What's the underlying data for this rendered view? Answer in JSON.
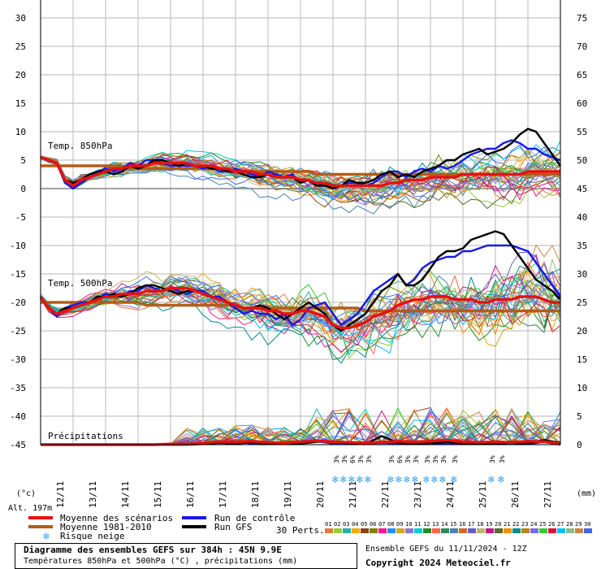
{
  "chart_data": {
    "type": "line",
    "left_axis_ticks": [
      "30",
      "25",
      "20",
      "15",
      "10",
      "5",
      "0",
      "-5",
      "-10",
      "-15",
      "-20",
      "-25",
      "-30",
      "-35",
      "-40",
      "-45"
    ],
    "right_axis_ticks": [
      "75",
      "70",
      "65",
      "60",
      "55",
      "50",
      "45",
      "40",
      "35",
      "30",
      "25",
      "20",
      "15",
      "10",
      "5",
      "0"
    ],
    "left_unit": "(°c)",
    "right_unit": "(mm)",
    "altitude": "Alt. 197m",
    "x_ticks": [
      "12/11",
      "13/11",
      "14/11",
      "15/11",
      "16/11",
      "17/11",
      "18/11",
      "19/11",
      "20/11",
      "21/11",
      "22/11",
      "23/11",
      "24/11",
      "25/11",
      "26/11",
      "27/11"
    ],
    "panel_labels": {
      "t850": "Temp. 850hPa",
      "t500": "Temp. 500hPa",
      "precip": "Précipitations"
    },
    "t850": {
      "x": [
        0,
        0.25,
        0.5,
        0.75,
        1,
        1.25,
        1.5,
        1.75,
        2,
        2.25,
        2.5,
        2.75,
        3,
        3.25,
        3.5,
        3.75,
        4,
        4.25,
        4.5,
        4.75,
        5,
        5.25,
        5.5,
        5.75,
        6,
        6.25,
        6.5,
        6.75,
        7,
        7.25,
        7.5,
        7.75,
        8,
        8.25,
        8.5,
        8.75,
        9,
        9.25,
        9.5,
        9.75,
        10,
        10.25,
        10.5,
        10.75,
        11,
        11.25,
        11.5,
        11.75,
        12,
        12.25,
        12.5,
        12.75,
        13,
        13.25,
        13.5,
        13.75,
        14,
        14.25,
        14.5,
        14.75,
        15,
        15.25,
        15.5,
        15.75,
        16
      ],
      "mean": [
        5.5,
        5,
        4.5,
        1.5,
        0.5,
        1.5,
        2,
        2.5,
        3,
        3.5,
        3.5,
        4,
        4,
        4,
        4.5,
        4.5,
        4.5,
        4.5,
        4.5,
        4,
        4,
        4,
        3.5,
        3.5,
        3,
        3,
        3,
        2.5,
        2.5,
        2,
        2,
        2,
        1.5,
        1.5,
        1,
        1,
        0.5,
        0.5,
        0.5,
        0.5,
        0.5,
        0.5,
        0.5,
        1,
        1,
        1.5,
        1.5,
        1.5,
        2,
        2,
        2,
        2,
        2.5,
        2.5,
        2.5,
        2.5,
        2.5,
        2.5,
        2.5,
        2.5,
        3,
        3,
        3,
        3,
        3
      ],
      "climo": [
        4,
        4,
        4,
        4,
        4,
        4,
        4,
        4,
        4,
        4,
        4,
        3.5,
        3.5,
        3.5,
        3.5,
        3.5,
        3.5,
        3.5,
        3.5,
        3.5,
        3.5,
        3.5,
        3.5,
        3,
        3,
        3,
        3,
        3,
        3,
        3,
        3,
        3,
        3,
        3,
        2.5,
        2.5,
        2.5,
        2.5,
        2.5,
        2.5,
        2.5,
        2.5,
        2.5,
        2.5,
        2.5,
        2.5,
        2.5,
        2.5,
        2.5,
        2.5,
        2.5,
        2.5,
        2.5,
        2.5,
        2.5,
        2.5,
        2.5,
        2.5,
        2.5,
        2.5,
        2.5,
        2.5,
        2.5,
        2.5,
        2.5
      ],
      "control": [
        5.5,
        5,
        4.5,
        1,
        0,
        1,
        2,
        3,
        3.5,
        3,
        3.5,
        4.5,
        4,
        5,
        5,
        4.5,
        4,
        4,
        4,
        4,
        3.5,
        4,
        3,
        3,
        3.5,
        3,
        2.5,
        2,
        3,
        2.5,
        2,
        2.5,
        1,
        1.5,
        0.5,
        1,
        0,
        0.5,
        1,
        1,
        0.5,
        1,
        2,
        3,
        3,
        2,
        3,
        3.5,
        3,
        4,
        3.5,
        4,
        5,
        6,
        6.5,
        7,
        7,
        8,
        8.5,
        8,
        7,
        7,
        6,
        5.5,
        5
      ],
      "gfs": [
        5.5,
        5,
        4.5,
        1.5,
        1,
        1.5,
        2.5,
        3,
        3,
        2.5,
        3,
        4,
        3.5,
        4,
        5,
        5,
        4.5,
        4,
        4.5,
        4,
        4,
        3.5,
        3.5,
        3,
        3,
        2.5,
        2,
        2,
        2.5,
        2,
        2,
        2,
        1,
        1.5,
        0.5,
        0.5,
        0,
        0.5,
        1.5,
        1,
        1,
        1.5,
        2.5,
        3,
        2,
        2.5,
        2,
        3,
        3.5,
        4,
        5,
        5,
        6,
        6.5,
        7,
        6,
        6.5,
        7,
        8,
        9.5,
        10.5,
        10,
        8,
        6,
        4
      ]
    },
    "t500": {
      "x": [
        0,
        0.25,
        0.5,
        0.75,
        1,
        1.25,
        1.5,
        1.75,
        2,
        2.25,
        2.5,
        2.75,
        3,
        3.25,
        3.5,
        3.75,
        4,
        4.25,
        4.5,
        4.75,
        5,
        5.25,
        5.5,
        5.75,
        6,
        6.25,
        6.5,
        6.75,
        7,
        7.25,
        7.5,
        7.75,
        8,
        8.25,
        8.5,
        8.75,
        9,
        9.25,
        9.5,
        9.75,
        10,
        10.25,
        10.5,
        10.75,
        11,
        11.25,
        11.5,
        11.75,
        12,
        12.25,
        12.5,
        12.75,
        13,
        13.25,
        13.5,
        13.75,
        14,
        14.25,
        14.5,
        14.75,
        15,
        15.25,
        15.5,
        15.75,
        16
      ],
      "mean": [
        -19,
        -21,
        -22,
        -21.5,
        -21,
        -20.5,
        -20,
        -19.5,
        -19,
        -19,
        -18.5,
        -18.5,
        -18.5,
        -18,
        -18,
        -18,
        -17.5,
        -17.5,
        -17.5,
        -18,
        -18.5,
        -19,
        -19.5,
        -20,
        -20.5,
        -21,
        -21,
        -21,
        -21.5,
        -21.5,
        -22,
        -22,
        -21.5,
        -21.5,
        -22,
        -22.5,
        -24,
        -24.5,
        -24.5,
        -24,
        -23.5,
        -22.5,
        -22,
        -21.5,
        -20.5,
        -20,
        -19.5,
        -19.5,
        -19,
        -19,
        -19,
        -19.5,
        -19.5,
        -19.5,
        -20,
        -20,
        -19.5,
        -19.5,
        -19.5,
        -19,
        -19,
        -19,
        -19.5,
        -20,
        -20
      ],
      "climo": [
        -20,
        -20,
        -20,
        -20,
        -20,
        -20,
        -20,
        -20,
        -20,
        -20,
        -20,
        -20,
        -20,
        -20.5,
        -20.5,
        -20.5,
        -20.5,
        -20.5,
        -20.5,
        -20.5,
        -20.5,
        -20.5,
        -20.5,
        -20.5,
        -20.5,
        -21,
        -21,
        -21,
        -21,
        -21,
        -21,
        -21,
        -21,
        -21,
        -21,
        -21,
        -21,
        -21,
        -21,
        -21,
        -21.5,
        -21.5,
        -21.5,
        -21.5,
        -21.5,
        -21.5,
        -21.5,
        -21.5,
        -21.5,
        -21.5,
        -21.5,
        -21.5,
        -21.5,
        -21.5,
        -21.5,
        -21.5,
        -21.5,
        -21.5,
        -21.5,
        -21.5,
        -21.5,
        -21.5,
        -21.5,
        -21.5,
        -21.5
      ],
      "control": [
        -19,
        -21,
        -22.5,
        -21,
        -20.5,
        -20,
        -20,
        -19.5,
        -18.5,
        -19,
        -19,
        -18,
        -18,
        -17,
        -17.5,
        -18,
        -17.5,
        -18,
        -18.5,
        -18,
        -18,
        -19,
        -19,
        -20,
        -21,
        -22,
        -21.5,
        -22,
        -22,
        -23,
        -22,
        -24,
        -23,
        -21,
        -20.5,
        -20,
        -22,
        -24,
        -23,
        -22,
        -20,
        -18,
        -17,
        -16,
        -15,
        -17,
        -16,
        -14,
        -13,
        -12.5,
        -12,
        -12,
        -11,
        -11,
        -10.5,
        -10,
        -10,
        -10,
        -10,
        -10.5,
        -11,
        -13,
        -15,
        -17,
        -19
      ],
      "gfs": [
        -19,
        -21,
        -22,
        -21,
        -21,
        -20.5,
        -20,
        -19,
        -19,
        -18.5,
        -19,
        -18.5,
        -17.5,
        -17,
        -17,
        -17.5,
        -18,
        -18.5,
        -18,
        -18,
        -18.5,
        -19,
        -19.5,
        -20,
        -20.5,
        -21,
        -21,
        -20.5,
        -21,
        -22,
        -23,
        -22,
        -21,
        -20,
        -21,
        -22,
        -24,
        -25,
        -24,
        -23,
        -22,
        -20,
        -18,
        -17,
        -15,
        -17,
        -17,
        -16,
        -14,
        -12,
        -11,
        -11,
        -10.5,
        -9,
        -8.5,
        -8,
        -7.5,
        -8,
        -10,
        -12,
        -14,
        -16,
        -17,
        -18,
        -19.5
      ]
    },
    "precip": {
      "x": [
        0,
        0.5,
        1,
        1.5,
        2,
        2.5,
        3,
        3.5,
        4,
        4.5,
        5,
        5.5,
        6,
        6.5,
        7,
        7.5,
        8,
        8.5,
        9,
        9.5,
        10,
        10.5,
        11,
        11.5,
        12,
        12.5,
        13,
        13.5,
        14,
        14.5,
        15,
        15.5,
        16
      ],
      "mean": [
        0,
        0,
        0,
        0,
        0,
        0,
        0,
        0,
        0.1,
        0.1,
        0.3,
        0.5,
        0.5,
        0.6,
        0.4,
        0.3,
        0.5,
        0.7,
        0.5,
        0.4,
        0.3,
        0.4,
        0.6,
        0.5,
        0.6,
        0.8,
        0.5,
        0.4,
        0.5,
        0.4,
        0.6,
        0.5,
        0.2
      ],
      "control": [
        0,
        0,
        0,
        0,
        0,
        0,
        0,
        0,
        0,
        0,
        0.2,
        0.3,
        0.6,
        0.2,
        0.3,
        0.2,
        0.3,
        0.6,
        0.2,
        0.1,
        0.2,
        0.3,
        0.2,
        0.3,
        0.2,
        0.1,
        0.2,
        0.1,
        0.2,
        0.3,
        0.1,
        0.5,
        0
      ],
      "gfs": [
        0,
        0,
        0,
        0,
        0,
        0,
        0,
        0,
        0,
        0,
        0.1,
        0.3,
        0.2,
        0.4,
        0.1,
        0.3,
        0.2,
        0.5,
        0.6,
        0.2,
        0.1,
        1.5,
        0.3,
        0.1,
        0.2,
        0.5,
        0.2,
        0.1,
        0.2,
        0.3,
        0.2,
        0.8,
        0.3
      ],
      "snow_columns": [
        9.1,
        9.35,
        9.6,
        9.85,
        10.1,
        10.8,
        11.05,
        11.3,
        11.55,
        11.9,
        12.15,
        12.4,
        12.75,
        13.9,
        14.2
      ],
      "snow_labels": [
        "3%",
        "3%",
        "6%",
        "3%",
        "3%",
        "3%",
        "6%",
        "3%",
        "3%",
        "3%",
        "3%",
        "3%",
        "3%",
        "3%",
        "3%"
      ]
    },
    "ensemble_note": "30 Perts."
  },
  "legend": {
    "mean_label": "Moyenne des scénarios",
    "climo_label": "Moyenne 1981-2010",
    "snow_label": "Risque neige",
    "control_label": "Run de contrôle",
    "gfs_label": "Run GFS",
    "perts_label": "30 Perts.",
    "members": [
      "01",
      "02",
      "03",
      "04",
      "05",
      "06",
      "07",
      "08",
      "09",
      "10",
      "11",
      "12",
      "13",
      "14",
      "15",
      "16",
      "17",
      "18",
      "19",
      "20",
      "21",
      "22",
      "23",
      "24",
      "25",
      "26",
      "27",
      "28",
      "29",
      "30"
    ],
    "member_colors": [
      "#e07b39",
      "#9acd32",
      "#20b2aa",
      "#ffa500",
      "#8b4513",
      "#808000",
      "#ff1493",
      "#1e90ff",
      "#daa520",
      "#9370db",
      "#00ced1",
      "#228b22",
      "#ff6347",
      "#2e8b57",
      "#4682b4",
      "#d2691e",
      "#6a5acd",
      "#bdb76b",
      "#c71585",
      "#556b2f",
      "#ff8c00",
      "#008b8b",
      "#b8860b",
      "#7b68ee",
      "#32cd32",
      "#dc143c",
      "#00bfff",
      "#8fbc8f",
      "#cd853f",
      "#4169e1"
    ]
  },
  "colors": {
    "mean": "#e8100e",
    "climo": "#b55c17",
    "control": "#1a1ae6",
    "gfs": "#000000",
    "grid": "#c4c4c4",
    "snow": "#3da0e6"
  },
  "caption": {
    "title": "Diagramme des ensembles GEFS sur 384h : 45N 9.9E",
    "subtitle": "Températures 850hPa et 500hPa (°C) , précipitations (mm)",
    "run": "Ensemble GEFS du 11/11/2024 - 12Z",
    "copyright": "Copyright 2024 Meteociel.fr"
  }
}
